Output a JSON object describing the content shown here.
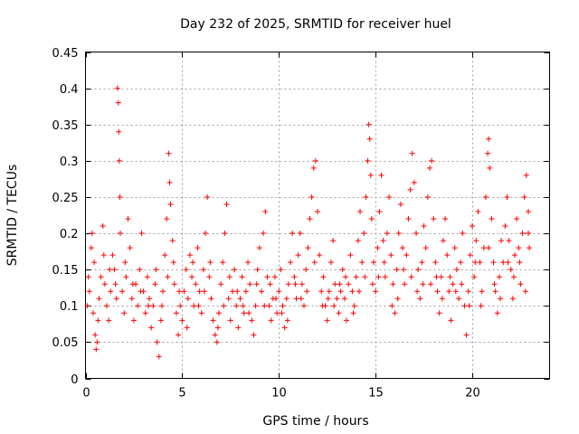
{
  "chart_data": {
    "type": "scatter",
    "title": "Day 232 of 2025, SRMTID for receiver huel",
    "xlabel": "GPS time / hours",
    "ylabel": "SRMTID / TECUs",
    "xlim": [
      0,
      24
    ],
    "ylim": [
      0,
      0.45
    ],
    "xticks": [
      0,
      5,
      10,
      15,
      20
    ],
    "xtick_labels": [
      "0",
      "5",
      "10",
      "15",
      "20"
    ],
    "yticks": [
      0,
      0.05,
      0.1,
      0.15,
      0.2,
      0.25,
      0.3,
      0.35,
      0.4,
      0.45
    ],
    "ytick_labels": [
      "0",
      "0.05",
      "0.1",
      "0.15",
      "0.2",
      "0.25",
      "0.3",
      "0.35",
      "0.4",
      "0.45"
    ],
    "grid": true,
    "marker": "+",
    "color": "#ff0000",
    "series": [
      {
        "name": "SRMTID",
        "points": [
          [
            0.1,
            0.1
          ],
          [
            0.2,
            0.12
          ],
          [
            0.3,
            0.18
          ],
          [
            0.35,
            0.2
          ],
          [
            0.4,
            0.09
          ],
          [
            0.5,
            0.06
          ],
          [
            0.55,
            0.04
          ],
          [
            0.6,
            0.05
          ],
          [
            0.7,
            0.11
          ],
          [
            0.8,
            0.14
          ],
          [
            0.9,
            0.21
          ],
          [
            1.0,
            0.13
          ],
          [
            1.1,
            0.1
          ],
          [
            1.2,
            0.08
          ],
          [
            1.3,
            0.12
          ],
          [
            1.4,
            0.17
          ],
          [
            1.5,
            0.15
          ],
          [
            1.6,
            0.11
          ],
          [
            1.65,
            0.4
          ],
          [
            1.7,
            0.38
          ],
          [
            1.72,
            0.34
          ],
          [
            1.75,
            0.3
          ],
          [
            1.78,
            0.25
          ],
          [
            1.8,
            0.2
          ],
          [
            1.9,
            0.12
          ],
          [
            2.0,
            0.09
          ],
          [
            2.1,
            0.14
          ],
          [
            2.2,
            0.22
          ],
          [
            2.3,
            0.18
          ],
          [
            2.4,
            0.11
          ],
          [
            2.5,
            0.08
          ],
          [
            2.6,
            0.13
          ],
          [
            2.7,
            0.1
          ],
          [
            2.8,
            0.15
          ],
          [
            2.9,
            0.2
          ],
          [
            3.0,
            0.12
          ],
          [
            3.1,
            0.09
          ],
          [
            3.2,
            0.14
          ],
          [
            3.3,
            0.11
          ],
          [
            3.4,
            0.07
          ],
          [
            3.5,
            0.1
          ],
          [
            3.6,
            0.13
          ],
          [
            3.7,
            0.05
          ],
          [
            3.8,
            0.03
          ],
          [
            3.9,
            0.08
          ],
          [
            4.0,
            0.12
          ],
          [
            4.1,
            0.17
          ],
          [
            4.2,
            0.22
          ],
          [
            4.3,
            0.31
          ],
          [
            4.35,
            0.27
          ],
          [
            4.4,
            0.24
          ],
          [
            4.5,
            0.19
          ],
          [
            4.6,
            0.13
          ],
          [
            4.7,
            0.09
          ],
          [
            4.8,
            0.06
          ],
          [
            4.9,
            0.1
          ],
          [
            5.0,
            0.08
          ],
          [
            5.1,
            0.12
          ],
          [
            5.2,
            0.15
          ],
          [
            5.3,
            0.11
          ],
          [
            5.4,
            0.17
          ],
          [
            5.5,
            0.14
          ],
          [
            5.6,
            0.1
          ],
          [
            5.7,
            0.13
          ],
          [
            5.8,
            0.18
          ],
          [
            5.9,
            0.12
          ],
          [
            6.0,
            0.09
          ],
          [
            6.1,
            0.15
          ],
          [
            6.2,
            0.2
          ],
          [
            6.3,
            0.25
          ],
          [
            6.4,
            0.14
          ],
          [
            6.5,
            0.11
          ],
          [
            6.6,
            0.08
          ],
          [
            6.7,
            0.06
          ],
          [
            6.8,
            0.05
          ],
          [
            6.9,
            0.09
          ],
          [
            7.0,
            0.13
          ],
          [
            7.1,
            0.16
          ],
          [
            7.2,
            0.2
          ],
          [
            7.3,
            0.24
          ],
          [
            7.4,
            0.11
          ],
          [
            7.5,
            0.08
          ],
          [
            7.6,
            0.12
          ],
          [
            7.7,
            0.15
          ],
          [
            7.8,
            0.1
          ],
          [
            7.9,
            0.07
          ],
          [
            8.0,
            0.11
          ],
          [
            8.1,
            0.14
          ],
          [
            8.2,
            0.09
          ],
          [
            8.3,
            0.12
          ],
          [
            8.4,
            0.16
          ],
          [
            8.5,
            0.13
          ],
          [
            8.6,
            0.08
          ],
          [
            8.7,
            0.06
          ],
          [
            8.8,
            0.1
          ],
          [
            8.9,
            0.15
          ],
          [
            9.0,
            0.18
          ],
          [
            9.1,
            0.12
          ],
          [
            9.2,
            0.2
          ],
          [
            9.3,
            0.23
          ],
          [
            9.4,
            0.14
          ],
          [
            9.5,
            0.1
          ],
          [
            9.6,
            0.08
          ],
          [
            9.7,
            0.11
          ],
          [
            9.8,
            0.14
          ],
          [
            9.9,
            0.09
          ],
          [
            10.0,
            0.12
          ],
          [
            10.1,
            0.15
          ],
          [
            10.2,
            0.1
          ],
          [
            10.3,
            0.07
          ],
          [
            10.4,
            0.11
          ],
          [
            10.5,
            0.13
          ],
          [
            10.6,
            0.16
          ],
          [
            10.7,
            0.2
          ],
          [
            10.8,
            0.14
          ],
          [
            10.9,
            0.11
          ],
          [
            11.0,
            0.17
          ],
          [
            11.1,
            0.2
          ],
          [
            11.2,
            0.13
          ],
          [
            11.3,
            0.1
          ],
          [
            11.4,
            0.15
          ],
          [
            11.5,
            0.18
          ],
          [
            11.6,
            0.22
          ],
          [
            11.7,
            0.25
          ],
          [
            11.8,
            0.29
          ],
          [
            11.9,
            0.3
          ],
          [
            12.0,
            0.23
          ],
          [
            12.1,
            0.17
          ],
          [
            12.2,
            0.12
          ],
          [
            12.3,
            0.14
          ],
          [
            12.4,
            0.1
          ],
          [
            12.5,
            0.08
          ],
          [
            12.6,
            0.12
          ],
          [
            12.7,
            0.16
          ],
          [
            12.8,
            0.19
          ],
          [
            12.9,
            0.13
          ],
          [
            13.0,
            0.11
          ],
          [
            13.1,
            0.09
          ],
          [
            13.2,
            0.12
          ],
          [
            13.3,
            0.15
          ],
          [
            13.4,
            0.11
          ],
          [
            13.5,
            0.08
          ],
          [
            13.6,
            0.13
          ],
          [
            13.7,
            0.17
          ],
          [
            13.8,
            0.12
          ],
          [
            13.9,
            0.1
          ],
          [
            14.0,
            0.14
          ],
          [
            14.1,
            0.19
          ],
          [
            14.2,
            0.23
          ],
          [
            14.3,
            0.16
          ],
          [
            14.4,
            0.2
          ],
          [
            14.5,
            0.25
          ],
          [
            14.6,
            0.3
          ],
          [
            14.65,
            0.35
          ],
          [
            14.7,
            0.33
          ],
          [
            14.75,
            0.28
          ],
          [
            14.8,
            0.22
          ],
          [
            14.9,
            0.16
          ],
          [
            15.0,
            0.12
          ],
          [
            15.1,
            0.18
          ],
          [
            15.2,
            0.23
          ],
          [
            15.3,
            0.28
          ],
          [
            15.4,
            0.19
          ],
          [
            15.5,
            0.14
          ],
          [
            15.6,
            0.2
          ],
          [
            15.7,
            0.25
          ],
          [
            15.8,
            0.17
          ],
          [
            15.9,
            0.13
          ],
          [
            16.0,
            0.09
          ],
          [
            16.1,
            0.15
          ],
          [
            16.2,
            0.2
          ],
          [
            16.3,
            0.24
          ],
          [
            16.4,
            0.18
          ],
          [
            16.5,
            0.13
          ],
          [
            16.6,
            0.17
          ],
          [
            16.7,
            0.22
          ],
          [
            16.8,
            0.26
          ],
          [
            16.9,
            0.31
          ],
          [
            17.0,
            0.27
          ],
          [
            17.1,
            0.2
          ],
          [
            17.2,
            0.15
          ],
          [
            17.3,
            0.11
          ],
          [
            17.4,
            0.16
          ],
          [
            17.5,
            0.21
          ],
          [
            17.6,
            0.18
          ],
          [
            17.7,
            0.25
          ],
          [
            17.8,
            0.29
          ],
          [
            17.9,
            0.3
          ],
          [
            18.0,
            0.22
          ],
          [
            18.1,
            0.16
          ],
          [
            18.2,
            0.12
          ],
          [
            18.3,
            0.09
          ],
          [
            18.4,
            0.14
          ],
          [
            18.5,
            0.19
          ],
          [
            18.6,
            0.22
          ],
          [
            18.7,
            0.17
          ],
          [
            18.8,
            0.12
          ],
          [
            18.9,
            0.08
          ],
          [
            19.0,
            0.13
          ],
          [
            19.1,
            0.18
          ],
          [
            19.2,
            0.15
          ],
          [
            19.3,
            0.11
          ],
          [
            19.4,
            0.16
          ],
          [
            19.5,
            0.2
          ],
          [
            19.6,
            0.1
          ],
          [
            19.7,
            0.06
          ],
          [
            19.8,
            0.12
          ],
          [
            19.9,
            0.17
          ],
          [
            20.0,
            0.21
          ],
          [
            20.1,
            0.14
          ],
          [
            20.2,
            0.19
          ],
          [
            20.3,
            0.23
          ],
          [
            20.4,
            0.16
          ],
          [
            20.5,
            0.12
          ],
          [
            20.6,
            0.18
          ],
          [
            20.7,
            0.25
          ],
          [
            20.8,
            0.31
          ],
          [
            20.85,
            0.33
          ],
          [
            20.9,
            0.29
          ],
          [
            21.0,
            0.22
          ],
          [
            21.1,
            0.16
          ],
          [
            21.2,
            0.12
          ],
          [
            21.3,
            0.09
          ],
          [
            21.4,
            0.14
          ],
          [
            21.5,
            0.19
          ],
          [
            21.6,
            0.16
          ],
          [
            21.7,
            0.21
          ],
          [
            21.8,
            0.25
          ],
          [
            21.9,
            0.19
          ],
          [
            22.0,
            0.15
          ],
          [
            22.1,
            0.11
          ],
          [
            22.2,
            0.17
          ],
          [
            22.3,
            0.22
          ],
          [
            22.4,
            0.18
          ],
          [
            22.5,
            0.13
          ],
          [
            22.6,
            0.2
          ],
          [
            22.7,
            0.25
          ],
          [
            22.8,
            0.28
          ],
          [
            22.9,
            0.23
          ],
          [
            22.95,
            0.18
          ],
          [
            0.15,
            0.14
          ],
          [
            0.45,
            0.16
          ],
          [
            0.65,
            0.08
          ],
          [
            0.95,
            0.17
          ],
          [
            1.25,
            0.15
          ],
          [
            1.55,
            0.13
          ],
          [
            2.05,
            0.16
          ],
          [
            2.45,
            0.13
          ],
          [
            2.85,
            0.12
          ],
          [
            3.25,
            0.1
          ],
          [
            3.65,
            0.15
          ],
          [
            3.95,
            0.1
          ],
          [
            4.25,
            0.14
          ],
          [
            4.55,
            0.16
          ],
          [
            4.85,
            0.12
          ],
          [
            5.25,
            0.07
          ],
          [
            5.55,
            0.16
          ],
          [
            5.85,
            0.1
          ],
          [
            6.15,
            0.12
          ],
          [
            6.45,
            0.16
          ],
          [
            6.85,
            0.07
          ],
          [
            7.15,
            0.1
          ],
          [
            7.45,
            0.14
          ],
          [
            7.85,
            0.12
          ],
          [
            8.15,
            0.1
          ],
          [
            8.45,
            0.09
          ],
          [
            8.85,
            0.13
          ],
          [
            9.25,
            0.1
          ],
          [
            9.55,
            0.13
          ],
          [
            9.85,
            0.11
          ],
          [
            10.15,
            0.09
          ],
          [
            10.45,
            0.08
          ],
          [
            10.85,
            0.13
          ],
          [
            11.15,
            0.11
          ],
          [
            11.45,
            0.12
          ],
          [
            11.85,
            0.16
          ],
          [
            12.25,
            0.1
          ],
          [
            12.55,
            0.11
          ],
          [
            12.85,
            0.1
          ],
          [
            13.15,
            0.13
          ],
          [
            13.45,
            0.14
          ],
          [
            13.85,
            0.09
          ],
          [
            14.15,
            0.12
          ],
          [
            14.45,
            0.14
          ],
          [
            14.85,
            0.13
          ],
          [
            15.15,
            0.14
          ],
          [
            15.45,
            0.16
          ],
          [
            15.85,
            0.1
          ],
          [
            16.15,
            0.11
          ],
          [
            16.45,
            0.15
          ],
          [
            16.85,
            0.14
          ],
          [
            17.15,
            0.12
          ],
          [
            17.45,
            0.13
          ],
          [
            17.85,
            0.13
          ],
          [
            18.15,
            0.14
          ],
          [
            18.45,
            0.11
          ],
          [
            18.85,
            0.14
          ],
          [
            19.15,
            0.12
          ],
          [
            19.45,
            0.13
          ],
          [
            19.85,
            0.1
          ],
          [
            20.15,
            0.16
          ],
          [
            20.45,
            0.1
          ],
          [
            20.85,
            0.18
          ],
          [
            21.15,
            0.13
          ],
          [
            21.45,
            0.11
          ],
          [
            21.85,
            0.16
          ],
          [
            22.15,
            0.14
          ],
          [
            22.45,
            0.16
          ],
          [
            22.75,
            0.12
          ],
          [
            22.9,
            0.2
          ]
        ]
      }
    ]
  }
}
